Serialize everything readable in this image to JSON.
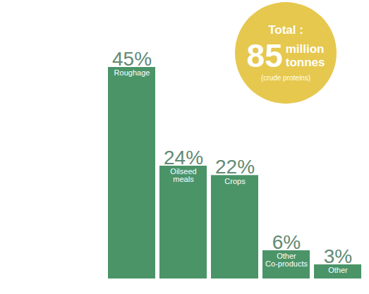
{
  "chart_data": {
    "type": "bar",
    "categories": [
      "Roughage",
      "Oilseed meals",
      "Crops",
      "Other Co-products",
      "Other"
    ],
    "values": [
      45,
      24,
      22,
      6,
      3
    ],
    "value_labels": [
      "45%",
      "24%",
      "22%",
      "6%",
      "3%"
    ],
    "color": "#4a9468",
    "data_labels": true,
    "tick_labels": false,
    "annotations": [
      "Total :",
      "85",
      "million",
      "tonnes",
      "(crude proteins)"
    ]
  }
}
